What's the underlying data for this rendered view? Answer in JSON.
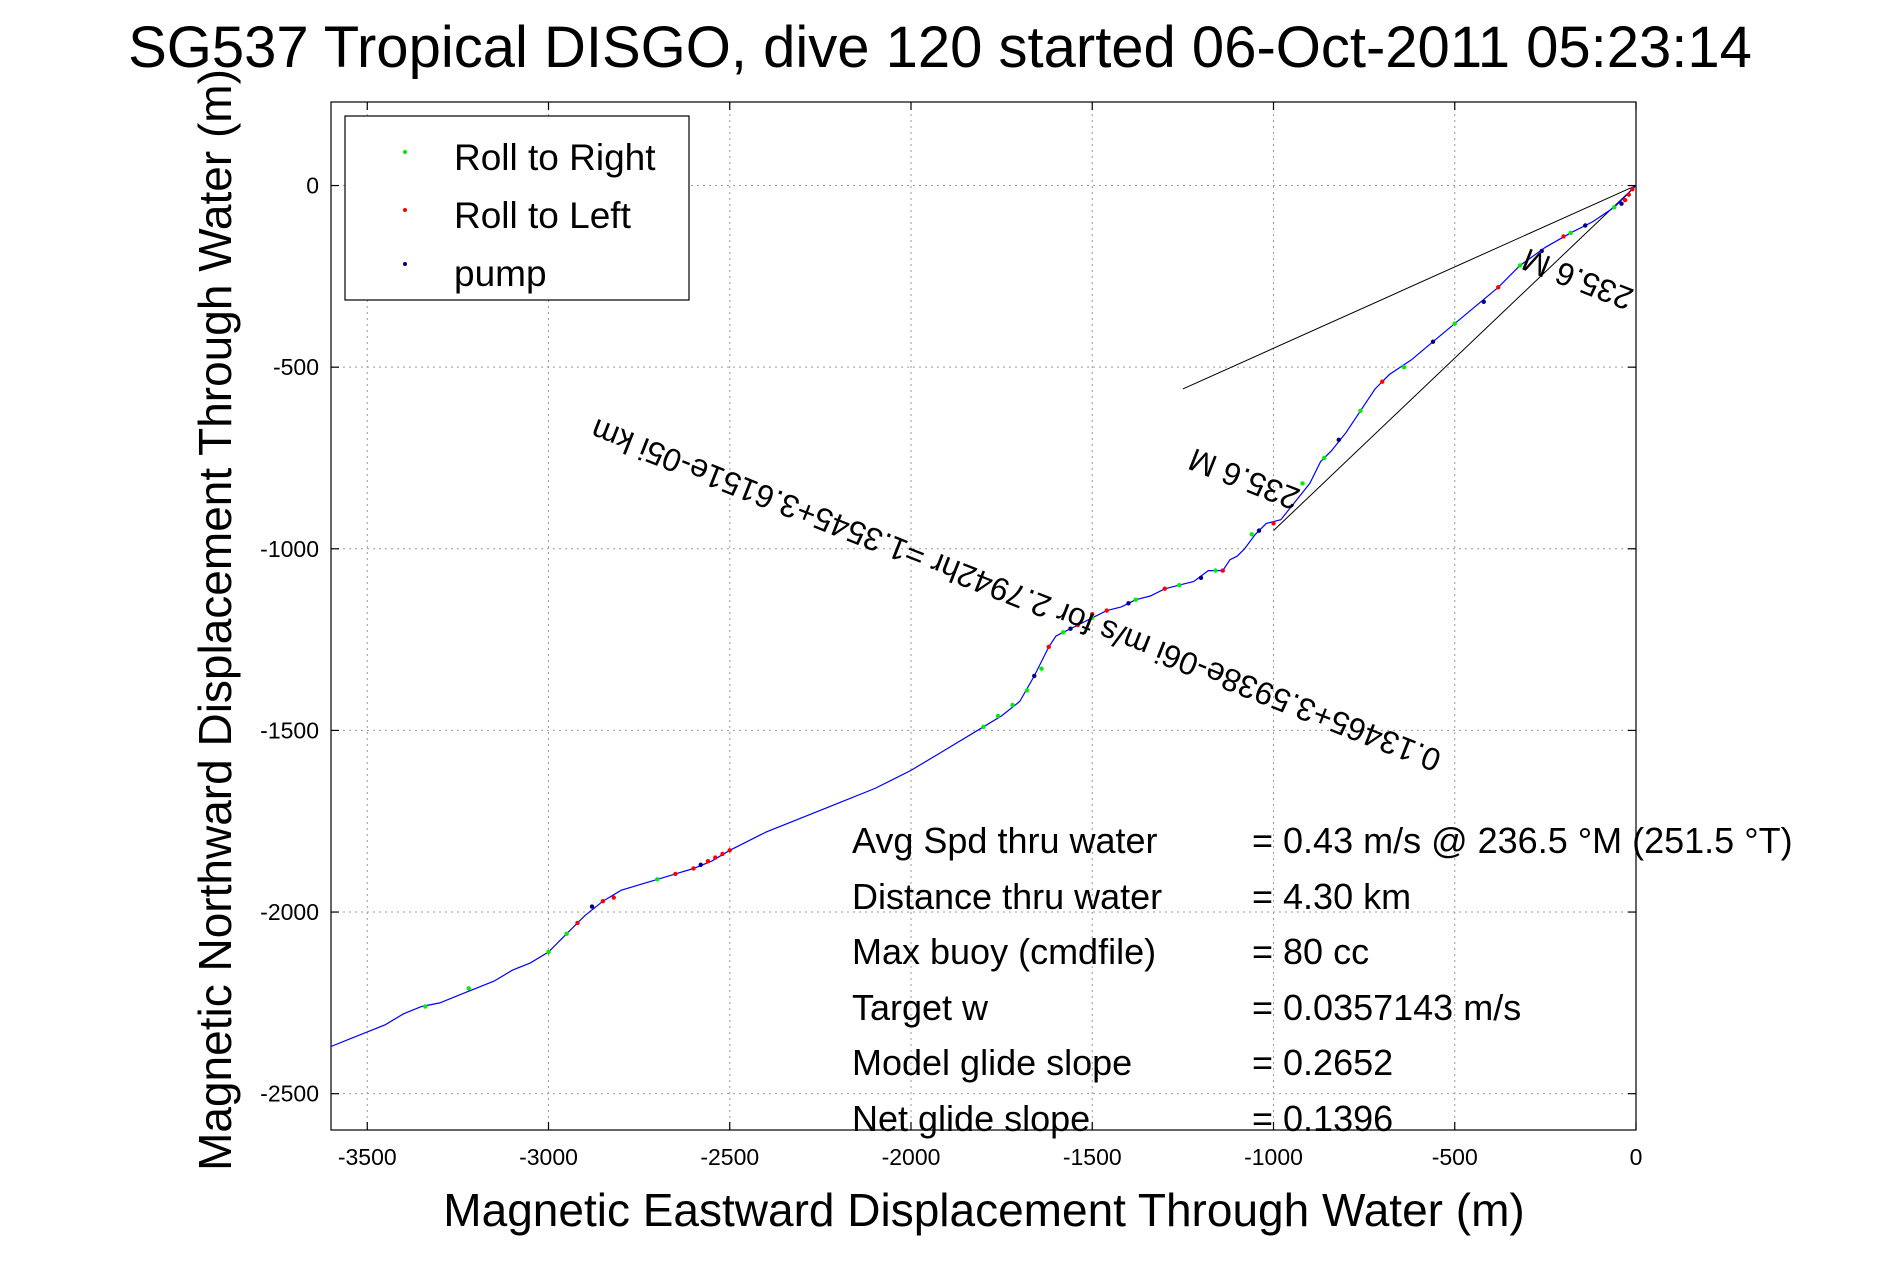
{
  "chart_data": {
    "type": "line",
    "title": "SG537 Tropical DISGO, dive 120 started 06-Oct-2011 05:23:14",
    "xlabel": "Magnetic Eastward Displacement Through Water (m)",
    "ylabel": "Magnetic Northward Displacement Through Water (m)",
    "xlim": [
      -3600,
      0
    ],
    "ylim": [
      -2600,
      230
    ],
    "xticks": [
      -3500,
      -3000,
      -2500,
      -2000,
      -1500,
      -1000,
      -500,
      0
    ],
    "yticks": [
      0,
      -500,
      -1000,
      -1500,
      -2000,
      -2500
    ],
    "xtick_labels": [
      "-3500",
      "-3000",
      "-2500",
      "-2000",
      "-1500",
      "-1000",
      "-500",
      "0"
    ],
    "ytick_labels": [
      "0",
      "-500",
      "-1000",
      "-1500",
      "-2000",
      "-2500"
    ],
    "grid": true,
    "legend_position": "top-left",
    "legend": [
      {
        "label": "Roll to Right",
        "color": "#00ee00"
      },
      {
        "label": "Roll to Left",
        "color": "#ff0000"
      },
      {
        "label": "pump",
        "color": "#000080"
      }
    ],
    "series": [
      {
        "name": "track",
        "color": "#0000ff",
        "x": [
          0,
          -20,
          -60,
          -120,
          -180,
          -250,
          -320,
          -380,
          -440,
          -500,
          -560,
          -620,
          -680,
          -720,
          -760,
          -800,
          -840,
          -870,
          -900,
          -940,
          -980,
          -1020,
          -1050,
          -1080,
          -1100,
          -1120,
          -1140,
          -1180,
          -1220,
          -1260,
          -1300,
          -1340,
          -1380,
          -1420,
          -1460,
          -1500,
          -1540,
          -1580,
          -1600,
          -1620,
          -1660,
          -1700,
          -1750,
          -1800,
          -1900,
          -2000,
          -2100,
          -2200,
          -2300,
          -2400,
          -2500,
          -2550,
          -2600,
          -2650,
          -2700,
          -2750,
          -2800,
          -2850,
          -2900,
          -2950,
          -3000,
          -3050,
          -3100,
          -3150,
          -3200,
          -3250,
          -3300,
          -3350,
          -3400,
          -3450,
          -3500,
          -3550,
          -3600
        ],
        "y": [
          0,
          -20,
          -60,
          -100,
          -130,
          -170,
          -220,
          -280,
          -330,
          -380,
          -430,
          -480,
          -520,
          -560,
          -620,
          -680,
          -730,
          -760,
          -820,
          -870,
          -920,
          -930,
          -960,
          -1000,
          -1020,
          -1030,
          -1060,
          -1060,
          -1090,
          -1100,
          -1110,
          -1130,
          -1140,
          -1160,
          -1170,
          -1190,
          -1210,
          -1230,
          -1240,
          -1270,
          -1350,
          -1420,
          -1460,
          -1490,
          -1550,
          -1610,
          -1660,
          -1700,
          -1740,
          -1780,
          -1830,
          -1860,
          -1880,
          -1895,
          -1910,
          -1925,
          -1940,
          -1970,
          -2010,
          -2060,
          -2110,
          -2140,
          -2160,
          -2190,
          -2210,
          -2230,
          -2250,
          -2260,
          -2280,
          -2310,
          -2330,
          -2350,
          -2370
        ]
      }
    ],
    "markers": {
      "roll_right": {
        "color": "#00ee00",
        "x": [
          -60,
          -180,
          -320,
          -500,
          -640,
          -760,
          -860,
          -920,
          -1060,
          -1160,
          -1260,
          -1380,
          -1500,
          -1580,
          -1640,
          -1680,
          -1720,
          -1760,
          -1800,
          -2700,
          -2950,
          -3000,
          -3220,
          -3340
        ],
        "y": [
          -60,
          -130,
          -220,
          -380,
          -500,
          -620,
          -750,
          -820,
          -960,
          -1060,
          -1100,
          -1140,
          -1190,
          -1230,
          -1330,
          -1390,
          -1430,
          -1460,
          -1490,
          -1910,
          -2060,
          -2110,
          -2210,
          -2260
        ]
      },
      "roll_left": {
        "color": "#ff0000",
        "x": [
          -10,
          -20,
          -30,
          -200,
          -380,
          -700,
          -1000,
          -1140,
          -1300,
          -1460,
          -1500,
          -1540,
          -1620,
          -2500,
          -2520,
          -2540,
          -2560,
          -2600,
          -2650,
          -2820,
          -2850,
          -2920
        ],
        "y": [
          -10,
          -25,
          -40,
          -140,
          -280,
          -540,
          -930,
          -1060,
          -1110,
          -1170,
          -1180,
          -1210,
          -1270,
          -1830,
          -1840,
          -1850,
          -1860,
          -1880,
          -1895,
          -1960,
          -1970,
          -2030
        ]
      },
      "pump": {
        "color": "#000080",
        "x": [
          -40,
          -140,
          -260,
          -420,
          -560,
          -820,
          -1040,
          -1200,
          -1400,
          -1560,
          -1660,
          -2580,
          -2880
        ],
        "y": [
          -50,
          -110,
          -180,
          -320,
          -430,
          -700,
          -950,
          -1080,
          -1150,
          -1220,
          -1350,
          -1870,
          -1985
        ]
      }
    },
    "guide_lines": [
      {
        "x": [
          0,
          -1250
        ],
        "y": [
          0,
          -560
        ]
      },
      {
        "x": [
          0,
          -1000
        ],
        "y": [
          0,
          -950
        ]
      }
    ],
    "annotations": [
      {
        "text": "0.13465+3.5938e-06i m/s for 2.7942hr =1.3545+3.6151e-05i km",
        "x": -1700,
        "y": -1100,
        "rotation_deg": 21.5
      },
      {
        "text": "235.6 M",
        "x": -150,
        "y": -230,
        "rotation_deg": 21.5
      },
      {
        "text": "235.6 M",
        "x": -1070,
        "y": -780,
        "rotation_deg": 21.5
      }
    ]
  },
  "stats": [
    {
      "label": "Avg Spd thru water",
      "value": "=  0.43 m/s @ 236.5 °M (251.5 °T)"
    },
    {
      "label": "Distance thru water",
      "value": "=  4.30 km"
    },
    {
      "label": "Max buoy (cmdfile)",
      "value": "= 80 cc"
    },
    {
      "label": "Target w",
      "value": "= 0.0357143 m/s"
    },
    {
      "label": "Model glide slope",
      "value": "= 0.2652"
    },
    {
      "label": "Net glide slope",
      "value": "= 0.1396"
    }
  ]
}
